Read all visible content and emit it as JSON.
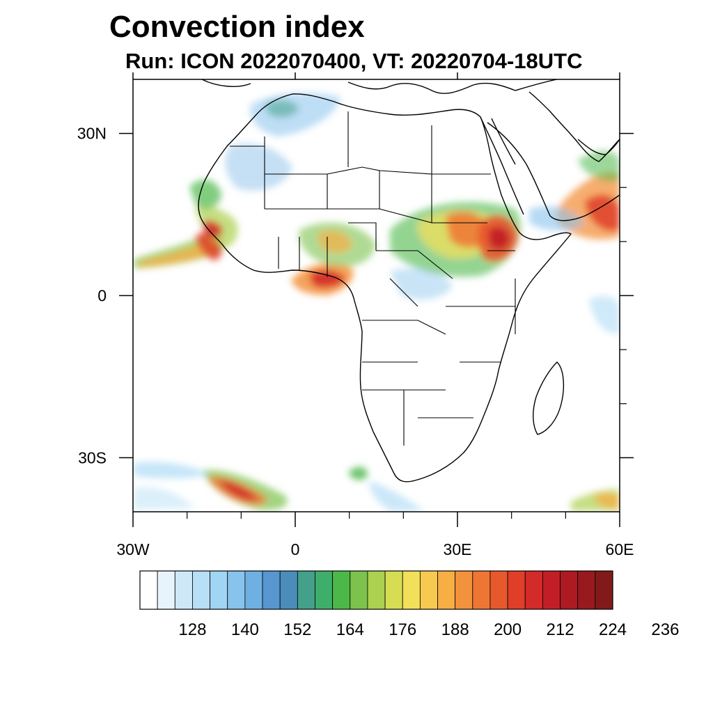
{
  "title": "Convection index",
  "subtitle": "Run: ICON 2022070400,  VT: 20220704-18UTC",
  "map": {
    "lon_range": [
      -30,
      60
    ],
    "lat_range": [
      -40,
      40
    ],
    "lon_ticks": [
      {
        "value": -30,
        "label": "30W"
      },
      {
        "value": 0,
        "label": "0"
      },
      {
        "value": 30,
        "label": "30E"
      },
      {
        "value": 60,
        "label": "60E"
      }
    ],
    "lat_ticks": [
      {
        "value": 30,
        "label": "30N"
      },
      {
        "value": 0,
        "label": "0"
      },
      {
        "value": -30,
        "label": "30S"
      }
    ],
    "minor_lon_ticks": [
      -20,
      -10,
      10,
      20,
      40,
      50
    ],
    "minor_lat_ticks": [
      20,
      10,
      -10,
      -20
    ]
  },
  "colorbar": {
    "colors": [
      "#ffffff",
      "#e8f4fb",
      "#cfe8f7",
      "#b7dff5",
      "#a0d5f3",
      "#87c3ec",
      "#6fb0e3",
      "#5796cf",
      "#4a8dba",
      "#44a08a",
      "#3fae6a",
      "#4db84a",
      "#7cc24c",
      "#acd04f",
      "#d6dd53",
      "#f2e05a",
      "#f8c950",
      "#f6ae45",
      "#f3923c",
      "#ef7534",
      "#e8582d",
      "#df3e29",
      "#d32a2a",
      "#c21e27",
      "#ad1a22",
      "#981a1e",
      "#821a1a"
    ],
    "labels": [
      "128",
      "140",
      "152",
      "164",
      "176",
      "188",
      "200",
      "212",
      "224",
      "236"
    ]
  },
  "convection_cells": [
    {
      "lon": -21,
      "lat": 7,
      "value": 210
    },
    {
      "lon": -14,
      "lat": 9,
      "value": 225
    },
    {
      "lon": -24,
      "lat": 4,
      "value": 190
    },
    {
      "lon": 7,
      "lat": 3,
      "value": 226
    },
    {
      "lon": 4,
      "lat": 2,
      "value": 200
    },
    {
      "lon": 8,
      "lat": 9,
      "value": 170
    },
    {
      "lon": 29,
      "lat": 12,
      "value": 200
    },
    {
      "lon": 34,
      "lat": 10,
      "value": 210
    },
    {
      "lon": 37,
      "lat": 11,
      "value": 228
    },
    {
      "lon": 25,
      "lat": 8,
      "value": 180
    },
    {
      "lon": 20,
      "lat": 9,
      "value": 165
    },
    {
      "lon": 53,
      "lat": 17,
      "value": 210
    },
    {
      "lon": 56,
      "lat": 14,
      "value": 222
    },
    {
      "lon": -13,
      "lat": -36,
      "value": 220
    },
    {
      "lon": -2,
      "lat": 27,
      "value": 160
    },
    {
      "lon": -15,
      "lat": 22,
      "value": 160
    },
    {
      "lon": 12,
      "lat": -33,
      "value": 180
    }
  ]
}
